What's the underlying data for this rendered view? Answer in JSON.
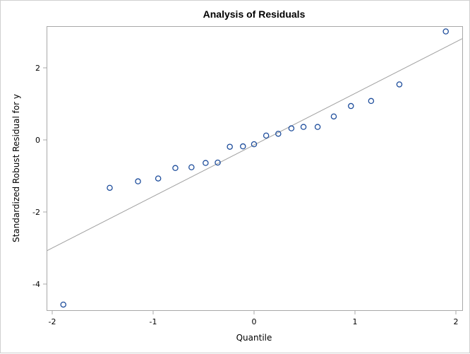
{
  "chart_data": {
    "type": "scatter",
    "title": "Analysis of Residuals",
    "xlabel": "Quantile",
    "ylabel": "Standardized Robust Residual for y",
    "xlim": [
      -2.06,
      2.06
    ],
    "ylim": [
      -4.75,
      3.2
    ],
    "xticks": [
      -2,
      -1,
      0,
      1,
      2
    ],
    "yticks": [
      -4,
      -2,
      0,
      2
    ],
    "grid": false,
    "legend": null,
    "series": [
      {
        "name": "Residuals",
        "marker": "open-circle",
        "color": "#1f4e9c",
        "points": [
          [
            -1.89,
            -4.57
          ],
          [
            -1.43,
            -1.33
          ],
          [
            -1.15,
            -1.15
          ],
          [
            -0.95,
            -1.07
          ],
          [
            -0.78,
            -0.78
          ],
          [
            -0.62,
            -0.76
          ],
          [
            -0.48,
            -0.64
          ],
          [
            -0.36,
            -0.63
          ],
          [
            -0.24,
            -0.19
          ],
          [
            -0.11,
            -0.18
          ],
          [
            0.0,
            -0.12
          ],
          [
            0.12,
            0.12
          ],
          [
            0.24,
            0.17
          ],
          [
            0.37,
            0.32
          ],
          [
            0.49,
            0.36
          ],
          [
            0.63,
            0.36
          ],
          [
            0.79,
            0.65
          ],
          [
            0.96,
            0.94
          ],
          [
            1.16,
            1.08
          ],
          [
            1.44,
            1.54
          ],
          [
            1.9,
            3.01
          ]
        ]
      }
    ],
    "reference_line": {
      "name": "Reference line",
      "slope": 1.43,
      "intercept": -0.14,
      "color": "#a0a0a0"
    }
  },
  "colors": {
    "frame": "#a8a8a8",
    "marker": "#1f4e9c",
    "reference_line": "#a0a0a0"
  }
}
